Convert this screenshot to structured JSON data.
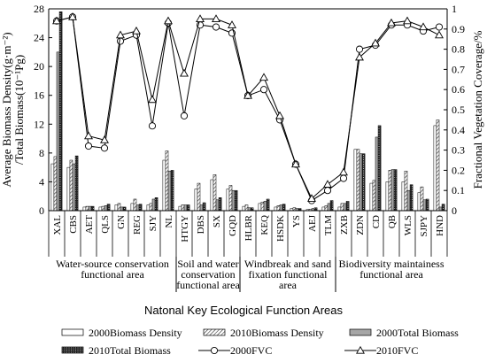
{
  "chart_data": {
    "type": "bar",
    "categories": [
      "XAL",
      "CBS",
      "AET",
      "QLS",
      "GN",
      "REG",
      "SJY",
      "NL",
      "HTGY",
      "DBS",
      "SX",
      "GQD",
      "HLBR",
      "KEQ",
      "HSDK",
      "YS",
      "AEJ",
      "TLM",
      "ZXB",
      "ZDN",
      "CD",
      "QB",
      "WLS",
      "SJPY",
      "HND"
    ],
    "series": [
      {
        "name": "2000Biomass Density",
        "axis": "left",
        "kind": "bar",
        "pattern": "white",
        "values": [
          6.5,
          6.0,
          0.5,
          0.5,
          0.8,
          1.0,
          0.8,
          7.0,
          0.6,
          3.0,
          4.3,
          3.0,
          0.6,
          1.0,
          0.5,
          0.3,
          0.15,
          0.5,
          0.5,
          8.5,
          3.8,
          4.0,
          4.0,
          2.5,
          11.8
        ]
      },
      {
        "name": "2010Biomass Density",
        "axis": "left",
        "kind": "bar",
        "pattern": "hatch",
        "values": [
          7.5,
          7.0,
          0.6,
          0.6,
          1.0,
          1.6,
          1.0,
          8.3,
          0.8,
          3.8,
          5.0,
          3.5,
          0.8,
          1.2,
          0.7,
          0.4,
          0.2,
          0.7,
          1.0,
          8.5,
          4.2,
          5.6,
          5.5,
          3.3,
          12.6
        ]
      },
      {
        "name": "2000Total Biomass",
        "axis": "left",
        "kind": "bar",
        "pattern": "gray",
        "values": [
          22.0,
          6.5,
          0.6,
          0.7,
          0.5,
          0.8,
          1.6,
          5.5,
          0.8,
          0.8,
          1.5,
          2.8,
          0.4,
          1.3,
          0.8,
          0.3,
          0.3,
          1.0,
          1.0,
          7.9,
          10.2,
          5.7,
          2.8,
          1.5,
          0.5
        ]
      },
      {
        "name": "2010Total Biomass",
        "axis": "left",
        "kind": "bar",
        "pattern": "dots",
        "values": [
          27.6,
          7.6,
          0.6,
          0.9,
          0.5,
          0.9,
          1.8,
          5.6,
          0.8,
          1.1,
          1.8,
          2.8,
          0.4,
          1.6,
          0.9,
          0.3,
          0.4,
          1.4,
          1.3,
          7.9,
          11.8,
          5.7,
          3.6,
          1.6,
          0.9
        ]
      },
      {
        "name": "2000FVC",
        "axis": "right",
        "kind": "line",
        "marker": "circle",
        "values": [
          0.94,
          0.96,
          0.32,
          0.31,
          0.84,
          0.87,
          0.42,
          0.93,
          0.47,
          0.92,
          0.91,
          0.88,
          0.57,
          0.6,
          0.45,
          0.23,
          0.05,
          0.1,
          0.16,
          0.8,
          0.82,
          0.92,
          0.92,
          0.89,
          0.91
        ]
      },
      {
        "name": "2010FVC",
        "axis": "right",
        "kind": "line",
        "marker": "triangle",
        "values": [
          0.94,
          0.96,
          0.37,
          0.35,
          0.87,
          0.89,
          0.55,
          0.94,
          0.68,
          0.95,
          0.95,
          0.92,
          0.57,
          0.66,
          0.47,
          0.23,
          0.06,
          0.13,
          0.19,
          0.76,
          0.83,
          0.93,
          0.94,
          0.91,
          0.87
        ]
      }
    ],
    "ylabel_left": "Average Biomass Density(g·m⁻²)\n/Total Biomass(10⁻¹Pg)",
    "ylabel_right": "Fractional Vegetation Coverage/%",
    "xlabel": "Natonal Key Ecological Function Areas",
    "ylim_left": [
      0,
      28
    ],
    "yticks_left": [
      0,
      4,
      8,
      12,
      16,
      20,
      24,
      28
    ],
    "ylim_right": [
      0,
      1
    ],
    "yticks_right": [
      "0",
      "0.1",
      "0.2",
      "0.3",
      "0.4",
      "0.5",
      "0.6",
      "0.7",
      "0.8",
      "0.9",
      "1"
    ],
    "groups": [
      {
        "label": "Water-source conservation\nfunctional area",
        "start": 0,
        "end": 7
      },
      {
        "label": "Soil and water\nconservation\nfunctional area",
        "start": 8,
        "end": 11
      },
      {
        "label": "Windbreak and sand\nfixation functional\narea",
        "start": 12,
        "end": 17
      },
      {
        "label": "Biodiversity maintainess\nfunctional area",
        "start": 18,
        "end": 24
      }
    ],
    "legend_position": "bottom",
    "grid": false
  }
}
